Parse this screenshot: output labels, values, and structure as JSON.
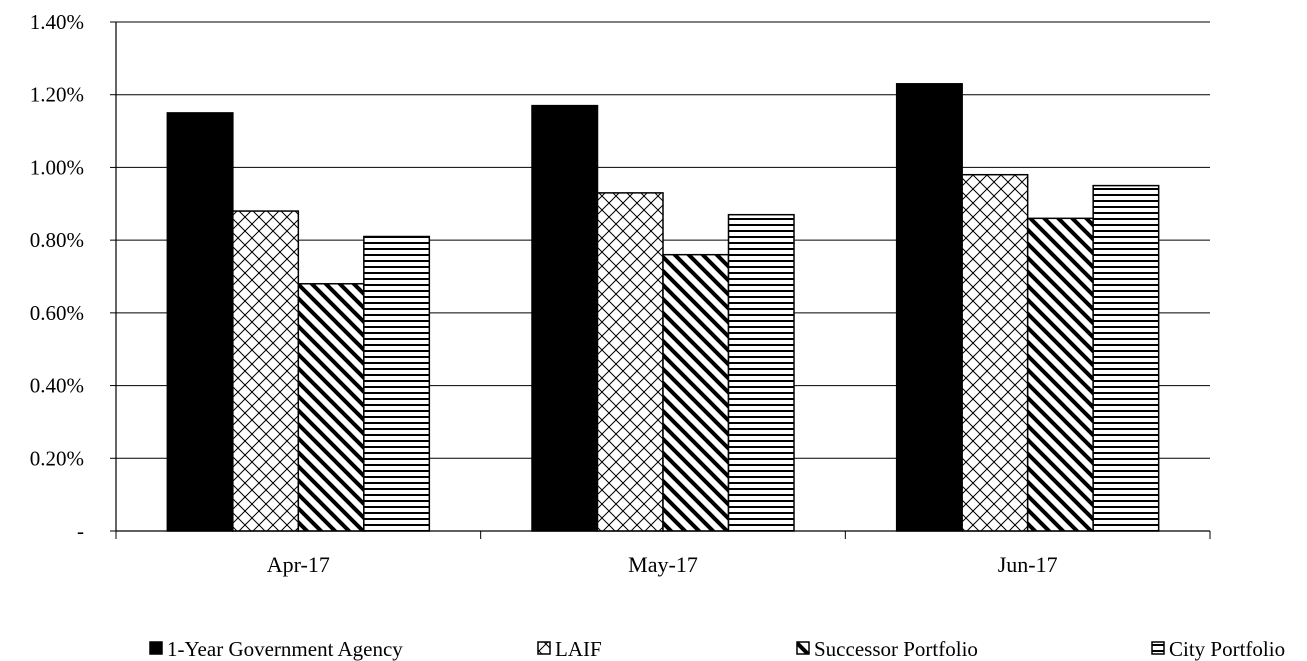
{
  "chart_data": {
    "type": "bar",
    "categories": [
      "Apr-17",
      "May-17",
      "Jun-17"
    ],
    "series": [
      {
        "name": "1-Year Government Agency",
        "values": [
          1.15,
          1.17,
          1.23
        ],
        "fill": "solid",
        "color": "#000000"
      },
      {
        "name": "LAIF",
        "values": [
          0.88,
          0.93,
          0.98
        ],
        "fill": "crosshatch",
        "color": "#000000"
      },
      {
        "name": "Successor Portfolio",
        "values": [
          0.68,
          0.76,
          0.86
        ],
        "fill": "diagonal",
        "color": "#000000"
      },
      {
        "name": "City Portfolio",
        "values": [
          0.81,
          0.87,
          0.95
        ],
        "fill": "horizontal",
        "color": "#000000"
      }
    ],
    "value_unit": "percent",
    "ylim": [
      0,
      1.4
    ],
    "yticks": [
      0,
      0.2,
      0.4,
      0.6,
      0.8,
      1.0,
      1.2,
      1.4
    ],
    "ytick_labels": [
      "-",
      "0.20%",
      "0.40%",
      "0.60%",
      "0.80%",
      "1.00%",
      "1.20%",
      "1.40%"
    ],
    "grid": "horizontal",
    "legend_position": "bottom",
    "title": "",
    "xlabel": "",
    "ylabel": ""
  }
}
